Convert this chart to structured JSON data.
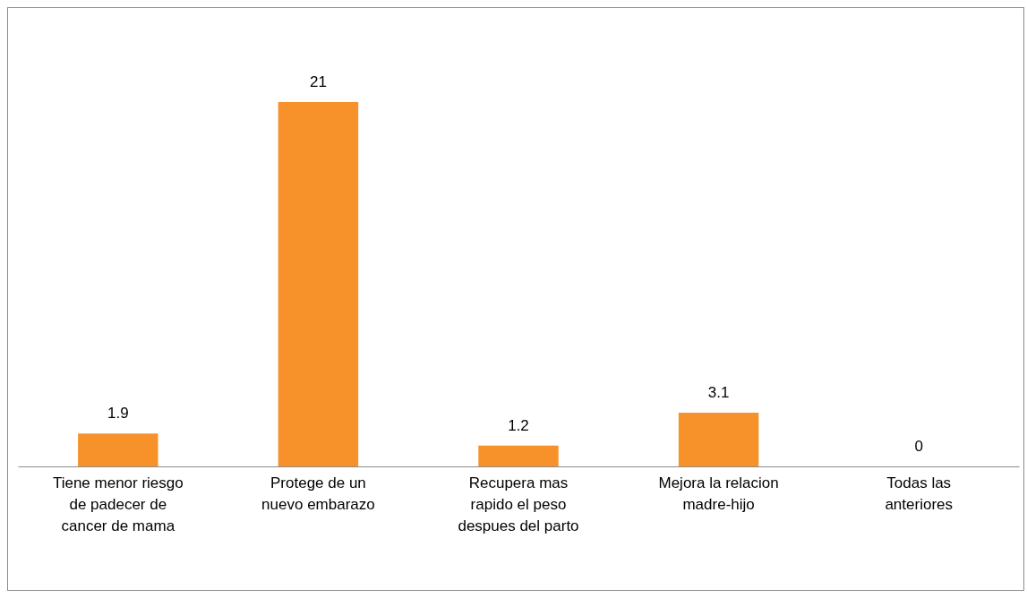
{
  "chart_data": {
    "type": "bar",
    "categories": [
      "Tiene menor riesgo de padecer de cancer de mama",
      "Protege de un nuevo embarazo",
      "Recupera mas rapido el peso despues del parto",
      "Mejora la relacion madre-hijo",
      "Todas las anteriores"
    ],
    "values": [
      1.9,
      21,
      1.2,
      3.1,
      0
    ],
    "color": "#f7922b",
    "data_labels": true
  }
}
